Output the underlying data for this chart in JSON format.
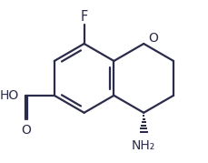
{
  "background": "#ffffff",
  "line_color": "#2b2b4b",
  "text_color": "#2b2b4b",
  "bond_lw": 1.6,
  "font_size": 9.5,
  "figsize": [
    2.29,
    1.79
  ],
  "dpi": 100,
  "xlim": [
    -1.8,
    3.6
  ],
  "ylim": [
    -2.0,
    1.8
  ]
}
